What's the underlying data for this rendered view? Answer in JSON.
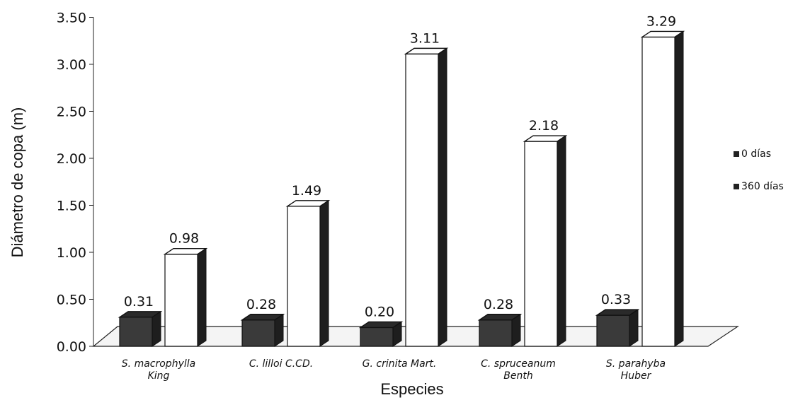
{
  "chart_data": {
    "type": "bar",
    "title": "",
    "xlabel": "Especies",
    "ylabel": "Diámetro de copa (m)",
    "ylim": [
      0,
      3.5
    ],
    "yticks": [
      "0.00",
      "0.50",
      "1.00",
      "1.50",
      "2.00",
      "2.50",
      "3.00",
      "3.50"
    ],
    "categories": [
      [
        "S. macrophylla",
        "King"
      ],
      [
        "C. lilloi C.CD."
      ],
      [
        "G. crinita Mart."
      ],
      [
        "C. spruceanum",
        "Benth"
      ],
      [
        "S. parahyba",
        "Huber"
      ]
    ],
    "series": [
      {
        "name": "0 días",
        "values": [
          0.31,
          0.28,
          0.2,
          0.28,
          0.33
        ],
        "labels": [
          "0.31",
          "0.28",
          "0.20",
          "0.28",
          "0.33"
        ]
      },
      {
        "name": "360 días",
        "values": [
          0.98,
          1.49,
          3.11,
          2.18,
          3.29
        ],
        "labels": [
          "0.98",
          "1.49",
          "3.11",
          "2.18",
          "3.29"
        ]
      }
    ],
    "legend_position": "right",
    "grid": false,
    "colors": {
      "dark": "#3a3a3a",
      "light": "#ffffff",
      "side_dark": "#1e1e1e"
    }
  }
}
